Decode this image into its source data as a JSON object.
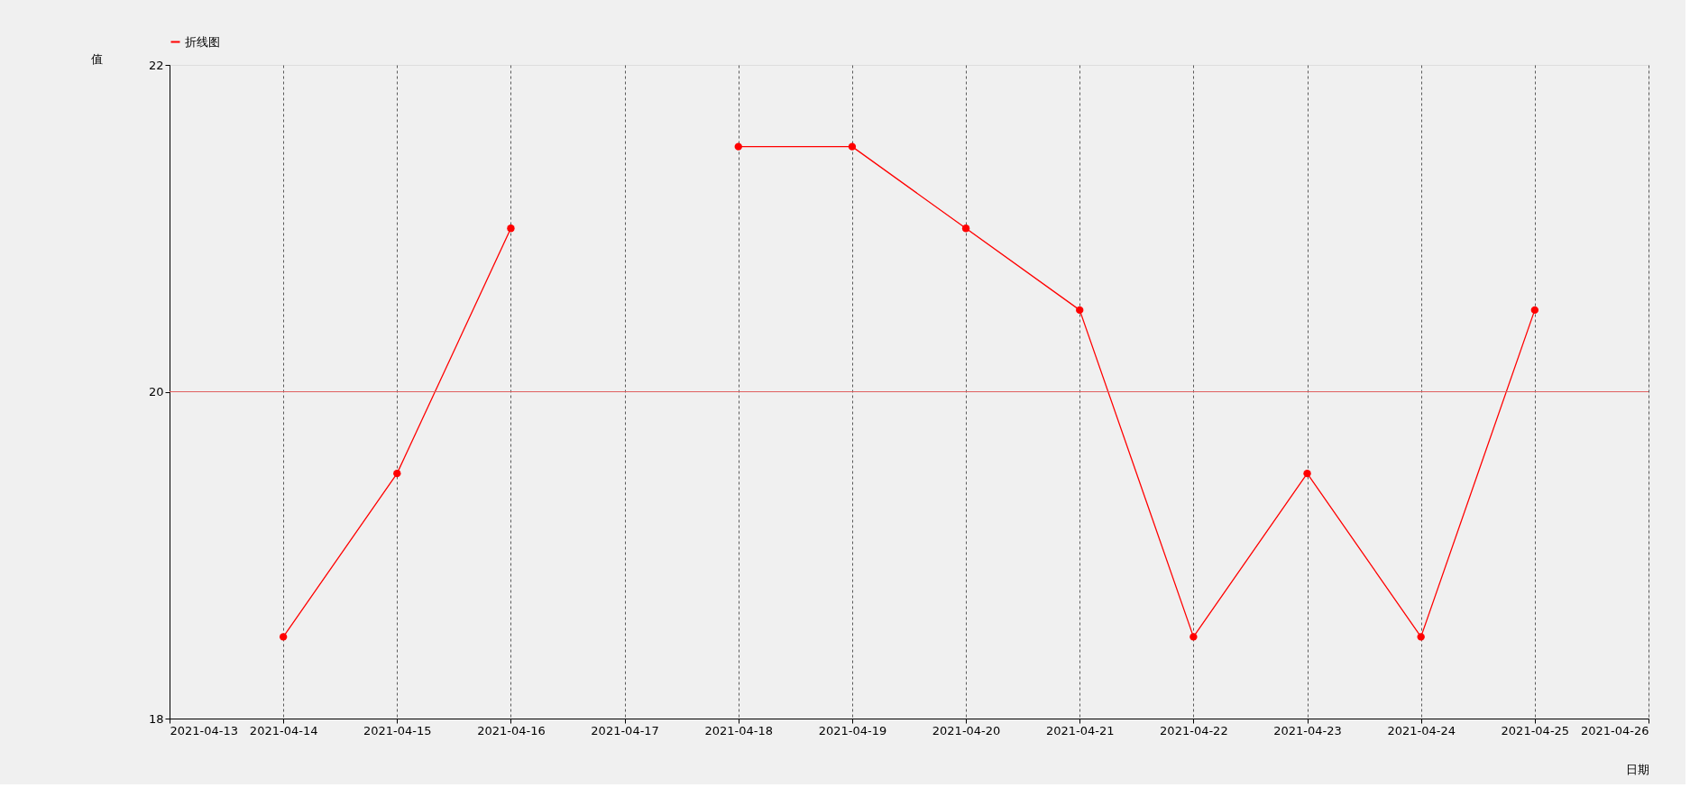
{
  "chart_data": {
    "type": "line",
    "xlabel": "日期",
    "ylabel": "值",
    "x": [
      "2021-04-14",
      "2021-04-15",
      "2021-04-16",
      "2021-04-17",
      "2021-04-18",
      "2021-04-19",
      "2021-04-20",
      "2021-04-21",
      "2021-04-22",
      "2021-04-23",
      "2021-04-24",
      "2021-04-25"
    ],
    "series": [
      {
        "name": "折线图",
        "color": "#ff0000",
        "values": [
          18.5,
          19.5,
          21,
          null,
          21.5,
          21.5,
          21,
          20.5,
          18.5,
          19.5,
          18.5,
          20.5
        ]
      }
    ],
    "xlim": [
      "2021-04-13",
      "2021-04-26"
    ],
    "xticks": [
      "2021-04-13",
      "2021-04-14",
      "2021-04-15",
      "2021-04-16",
      "2021-04-17",
      "2021-04-18",
      "2021-04-19",
      "2021-04-20",
      "2021-04-21",
      "2021-04-22",
      "2021-04-23",
      "2021-04-24",
      "2021-04-25",
      "2021-04-26"
    ],
    "ylim": [
      18,
      22
    ],
    "yticks": [
      18,
      20,
      22
    ],
    "ref_lines": [
      {
        "axis": "y",
        "value": 20,
        "color": "#e06060"
      }
    ],
    "grid": "x",
    "legend": "top",
    "marker": "circle",
    "line_style": "solid"
  }
}
